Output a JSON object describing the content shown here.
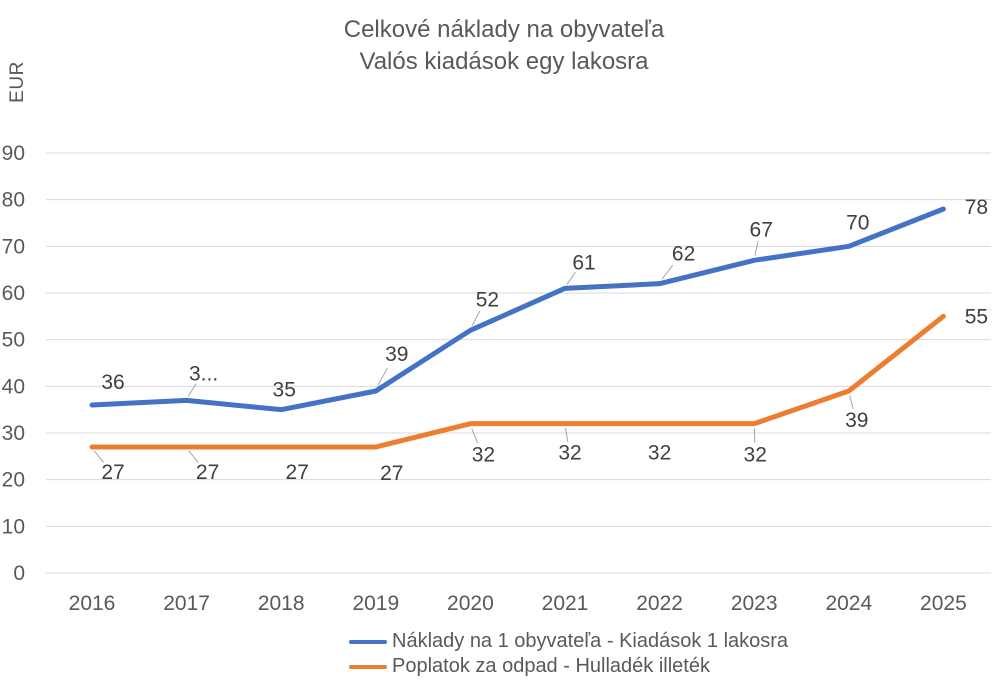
{
  "title": {
    "line1": "Celkové náklady na obyvateľa",
    "line2": "Valós kiadások egy lakosra"
  },
  "y_axis": {
    "unit_label": "EUR",
    "tick_labels": [
      "0",
      "10",
      "20",
      "30",
      "40",
      "50",
      "60",
      "70",
      "80",
      "90"
    ]
  },
  "x_axis": {
    "tick_labels": [
      "2016",
      "2017",
      "2018",
      "2019",
      "2020",
      "2021",
      "2022",
      "2023",
      "2024",
      "2025"
    ]
  },
  "colors": {
    "series_blue": "#4472C4",
    "series_orange": "#ED7D31",
    "gridline": "#D9D9D9",
    "axis_text": "#595959",
    "data_label_text": "#404040",
    "leader_line": "#A6A6A6",
    "background": "#FFFFFF"
  },
  "chart_data": {
    "type": "line",
    "title": "Celkové náklady na obyvateľa / Valós kiadások egy lakosra",
    "categories": [
      "2016",
      "2017",
      "2018",
      "2019",
      "2020",
      "2021",
      "2022",
      "2023",
      "2024",
      "2025"
    ],
    "series": [
      {
        "name": "Náklady na 1 obyvateľa - Kiadások 1 lakosra",
        "color": "#4472C4",
        "values": [
          36,
          37,
          35,
          39,
          52,
          61,
          62,
          67,
          70,
          78
        ],
        "point_labels": [
          "36",
          "3...",
          "35",
          "39",
          "52",
          "61",
          "62",
          "67",
          "70",
          "78"
        ]
      },
      {
        "name": "Poplatok za odpad - Hulladék illeték",
        "color": "#ED7D31",
        "values": [
          27,
          27,
          27,
          27,
          32,
          32,
          32,
          32,
          39,
          55
        ],
        "point_labels": [
          "27",
          "27",
          "27",
          "27",
          "32",
          "32",
          "32",
          "32",
          "39",
          "55"
        ]
      }
    ],
    "ylabel": "EUR",
    "xlabel": "",
    "ylim": [
      0,
      90
    ],
    "y_ticks": [
      0,
      10,
      20,
      30,
      40,
      50,
      60,
      70,
      80,
      90
    ],
    "grid": true,
    "legend_position": "bottom",
    "label_offsets": [
      [
        [
          21,
          -23,
          0
        ],
        [
          17,
          -27,
          1
        ],
        [
          3,
          -20,
          0
        ],
        [
          21,
          -37,
          1
        ],
        [
          17,
          -31,
          1
        ],
        [
          19,
          -26,
          1
        ],
        [
          24,
          -30,
          1
        ],
        [
          7,
          -31,
          1
        ],
        [
          9,
          -24,
          0
        ],
        [
          33,
          -2,
          0
        ]
      ],
      [
        [
          21,
          25,
          1
        ],
        [
          21,
          25,
          1
        ],
        [
          16,
          25,
          0
        ],
        [
          16,
          26,
          0
        ],
        [
          13,
          31,
          1
        ],
        [
          5,
          29,
          1
        ],
        [
          0,
          29,
          0
        ],
        [
          1,
          31,
          1
        ],
        [
          8,
          29,
          1
        ],
        [
          33,
          0,
          0
        ]
      ]
    ]
  }
}
